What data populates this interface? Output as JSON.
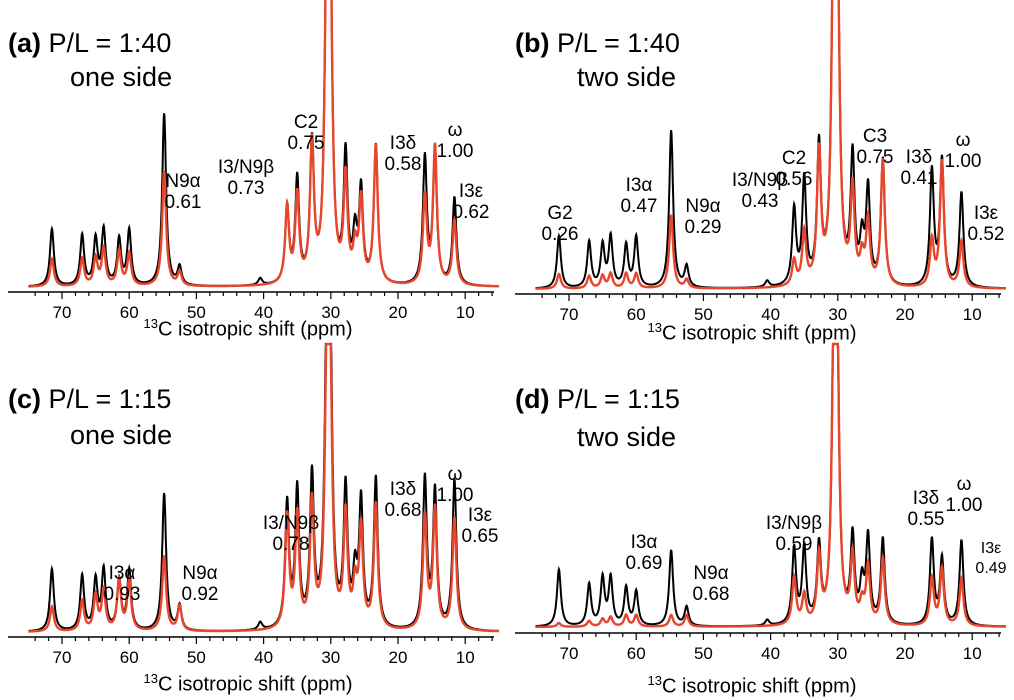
{
  "colors": {
    "series_a": "#000000",
    "series_b": "#e8462c"
  },
  "chart_data": [
    {
      "type": "line",
      "label_letter": "(a)",
      "ratio": "P/L = 1:40",
      "side": "one side",
      "xlabel_sup": "13",
      "xlabel_rest": "C isotropic shift (ppm)",
      "xlim": [
        75,
        5
      ],
      "xticks": [
        "70",
        "60",
        "50",
        "40",
        "30",
        "20",
        "10"
      ],
      "annotations": [
        {
          "name": "N9α",
          "val": "0.61"
        },
        {
          "name": "I3/N9β",
          "val": "0.73"
        },
        {
          "name": "C2",
          "val": "0.75"
        },
        {
          "name": "I3δ",
          "val": "0.58"
        },
        {
          "name": "ω",
          "val": "1.00"
        },
        {
          "name": "I3ε",
          "val": "0.62"
        }
      ],
      "peaks_black": [
        [
          71.5,
          0.25
        ],
        [
          67,
          0.22
        ],
        [
          65,
          0.2
        ],
        [
          63.8,
          0.24
        ],
        [
          61.5,
          0.2
        ],
        [
          60,
          0.24
        ],
        [
          54.8,
          0.75
        ],
        [
          52.5,
          0.08
        ],
        [
          40.5,
          0.03
        ],
        [
          36.5,
          0.33
        ],
        [
          35,
          0.45
        ],
        [
          32.8,
          0.6
        ],
        [
          30.6,
          1.3
        ],
        [
          30.1,
          1.3
        ],
        [
          27.8,
          0.55
        ],
        [
          26.4,
          0.2
        ],
        [
          25.5,
          0.4
        ],
        [
          23.3,
          0.6
        ],
        [
          16,
          0.55
        ],
        [
          14.5,
          0.55
        ],
        [
          11.6,
          0.38
        ]
      ],
      "peaks_red": [
        [
          71.5,
          0.12
        ],
        [
          67,
          0.12
        ],
        [
          65,
          0.12
        ],
        [
          63.8,
          0.16
        ],
        [
          61.5,
          0.15
        ],
        [
          60,
          0.14
        ],
        [
          54.8,
          0.5
        ],
        [
          52.5,
          0.06
        ],
        [
          36.5,
          0.33
        ],
        [
          35,
          0.38
        ],
        [
          32.8,
          0.6
        ],
        [
          30.6,
          1.3
        ],
        [
          30.1,
          1.3
        ],
        [
          27.8,
          0.45
        ],
        [
          26.4,
          0.14
        ],
        [
          25.5,
          0.36
        ],
        [
          23.3,
          0.6
        ],
        [
          16,
          0.38
        ],
        [
          14.5,
          0.6
        ],
        [
          11.6,
          0.28
        ]
      ]
    },
    {
      "type": "line",
      "label_letter": "(b)",
      "ratio": "P/L = 1:40",
      "side": "two side",
      "xlabel_sup": "13",
      "xlabel_rest": "C isotropic shift (ppm)",
      "xlim": [
        75,
        5
      ],
      "xticks": [
        "70",
        "60",
        "50",
        "40",
        "30",
        "20",
        "10"
      ],
      "annotations": [
        {
          "name": "G2",
          "val": "0.26"
        },
        {
          "name": "I3α",
          "val": "0.47"
        },
        {
          "name": "N9α",
          "val": "0.29"
        },
        {
          "name": "I3/N9β",
          "val": "0.43"
        },
        {
          "name": "C2",
          "val": "0.56"
        },
        {
          "name": "C3",
          "val": "0.75"
        },
        {
          "name": "I3δ",
          "val": "0.41"
        },
        {
          "name": "ω",
          "val": "1.00"
        },
        {
          "name": "I3ε",
          "val": "0.52"
        }
      ],
      "peaks_black": [
        [
          71.5,
          0.25
        ],
        [
          67,
          0.22
        ],
        [
          65,
          0.2
        ],
        [
          63.8,
          0.24
        ],
        [
          61.5,
          0.2
        ],
        [
          60,
          0.24
        ],
        [
          54.8,
          0.75
        ],
        [
          52.5,
          0.1
        ],
        [
          40.5,
          0.03
        ],
        [
          36.5,
          0.36
        ],
        [
          35,
          0.5
        ],
        [
          32.8,
          0.65
        ],
        [
          30.6,
          1.6
        ],
        [
          30.1,
          1.6
        ],
        [
          27.8,
          0.6
        ],
        [
          26.4,
          0.2
        ],
        [
          25.5,
          0.45
        ],
        [
          23.3,
          0.6
        ],
        [
          16,
          0.55
        ],
        [
          14.5,
          0.6
        ],
        [
          11.6,
          0.45
        ]
      ],
      "peaks_red": [
        [
          71.5,
          0.07
        ],
        [
          67,
          0.06
        ],
        [
          65,
          0.06
        ],
        [
          63.8,
          0.07
        ],
        [
          61.5,
          0.07
        ],
        [
          60,
          0.07
        ],
        [
          54.8,
          0.35
        ],
        [
          52.5,
          0.04
        ],
        [
          36.5,
          0.12
        ],
        [
          35,
          0.25
        ],
        [
          32.8,
          0.62
        ],
        [
          30.6,
          1.6
        ],
        [
          30.1,
          1.6
        ],
        [
          27.8,
          0.45
        ],
        [
          26.4,
          0.12
        ],
        [
          25.5,
          0.3
        ],
        [
          23.3,
          0.6
        ],
        [
          16,
          0.22
        ],
        [
          14.5,
          0.6
        ],
        [
          11.6,
          0.22
        ]
      ]
    },
    {
      "type": "line",
      "label_letter": "(c)",
      "ratio": "P/L = 1:15",
      "side": "one side",
      "xlabel_sup": "13",
      "xlabel_rest": "C isotropic shift (ppm)",
      "xlim": [
        75,
        5
      ],
      "xticks": [
        "70",
        "60",
        "50",
        "40",
        "30",
        "20",
        "10"
      ],
      "annotations": [
        {
          "name": "I3α",
          "val": "0.93"
        },
        {
          "name": "N9α",
          "val": "0.92"
        },
        {
          "name": "I3/N9β",
          "val": "0.78"
        },
        {
          "name": "I3δ",
          "val": "0.68"
        },
        {
          "name": "ω",
          "val": "1.00"
        },
        {
          "name": "I3ε",
          "val": "0.65"
        }
      ],
      "peaks_black": [
        [
          71.5,
          0.25
        ],
        [
          67,
          0.22
        ],
        [
          65,
          0.2
        ],
        [
          63.8,
          0.24
        ],
        [
          61.5,
          0.2
        ],
        [
          60,
          0.24
        ],
        [
          54.8,
          0.55
        ],
        [
          52.5,
          0.1
        ],
        [
          40.5,
          0.03
        ],
        [
          36.5,
          0.5
        ],
        [
          35,
          0.55
        ],
        [
          32.8,
          0.6
        ],
        [
          30.6,
          1.1
        ],
        [
          30.1,
          1.1
        ],
        [
          27.8,
          0.55
        ],
        [
          26.4,
          0.2
        ],
        [
          25.5,
          0.5
        ],
        [
          23.3,
          0.6
        ],
        [
          16,
          0.6
        ],
        [
          14.5,
          0.55
        ],
        [
          11.6,
          0.6
        ]
      ],
      "peaks_red": [
        [
          71.5,
          0.1
        ],
        [
          67,
          0.12
        ],
        [
          65,
          0.14
        ],
        [
          63.8,
          0.16
        ],
        [
          61.5,
          0.2
        ],
        [
          60,
          0.2
        ],
        [
          54.8,
          0.3
        ],
        [
          52.5,
          0.1
        ],
        [
          36.5,
          0.45
        ],
        [
          35,
          0.45
        ],
        [
          32.8,
          0.5
        ],
        [
          30.6,
          0.95
        ],
        [
          30.1,
          0.95
        ],
        [
          27.8,
          0.45
        ],
        [
          26.4,
          0.16
        ],
        [
          25.5,
          0.4
        ],
        [
          23.3,
          0.5
        ],
        [
          16,
          0.45
        ],
        [
          14.5,
          0.48
        ],
        [
          11.6,
          0.45
        ]
      ]
    },
    {
      "type": "line",
      "label_letter": "(d)",
      "ratio": "P/L = 1:15",
      "side": "two side",
      "xlabel_sup": "13",
      "xlabel_rest": "C isotropic shift (ppm)",
      "xlim": [
        75,
        5
      ],
      "xticks": [
        "70",
        "60",
        "50",
        "40",
        "30",
        "20",
        "10"
      ],
      "annotations": [
        {
          "name": "I3α",
          "val": "0.69"
        },
        {
          "name": "N9α",
          "val": "0.68"
        },
        {
          "name": "I3/N9β",
          "val": "0.59"
        },
        {
          "name": "I3δ",
          "val": "0.55"
        },
        {
          "name": "ω",
          "val": "1.00"
        },
        {
          "name": "I3ε",
          "val": "0.49"
        }
      ],
      "peaks_black": [
        [
          71.5,
          0.3
        ],
        [
          67,
          0.22
        ],
        [
          65,
          0.25
        ],
        [
          63.8,
          0.25
        ],
        [
          61.5,
          0.2
        ],
        [
          60,
          0.18
        ],
        [
          54.8,
          0.4
        ],
        [
          52.5,
          0.1
        ],
        [
          40.5,
          0.03
        ],
        [
          36.5,
          0.4
        ],
        [
          35,
          0.4
        ],
        [
          32.8,
          0.4
        ],
        [
          30.6,
          1.3
        ],
        [
          30.1,
          1.3
        ],
        [
          27.8,
          0.45
        ],
        [
          26.4,
          0.2
        ],
        [
          25.5,
          0.45
        ],
        [
          23.3,
          0.45
        ],
        [
          16,
          0.45
        ],
        [
          14.5,
          0.35
        ],
        [
          11.6,
          0.45
        ]
      ],
      "peaks_red": [
        [
          71.5,
          0.02
        ],
        [
          67,
          0.03
        ],
        [
          65,
          0.04
        ],
        [
          63.8,
          0.05
        ],
        [
          61.5,
          0.06
        ],
        [
          60,
          0.06
        ],
        [
          54.8,
          0.06
        ],
        [
          52.5,
          0.06
        ],
        [
          36.5,
          0.25
        ],
        [
          35,
          0.15
        ],
        [
          32.8,
          0.35
        ],
        [
          30.6,
          1.35
        ],
        [
          30.1,
          1.35
        ],
        [
          27.8,
          0.35
        ],
        [
          26.4,
          0.1
        ],
        [
          25.5,
          0.3
        ],
        [
          23.3,
          0.35
        ],
        [
          16,
          0.25
        ],
        [
          14.5,
          0.3
        ],
        [
          11.6,
          0.25
        ]
      ]
    }
  ]
}
